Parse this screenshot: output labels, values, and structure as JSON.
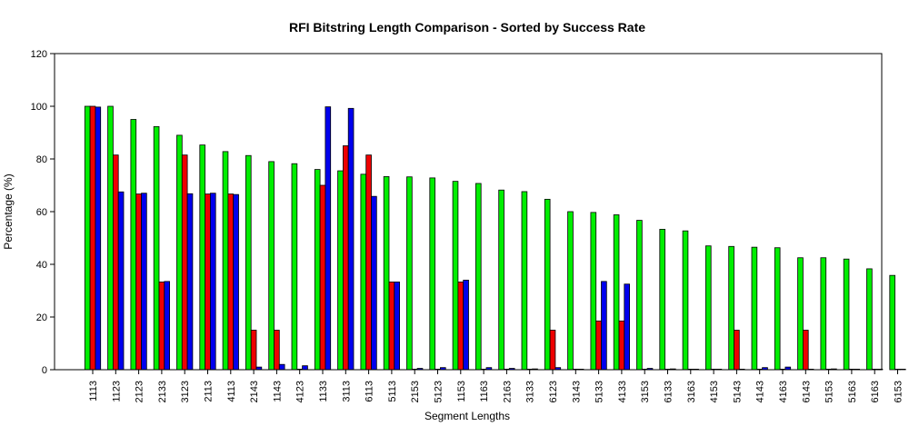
{
  "chart_data": {
    "type": "bar",
    "title": "RFI Bitstring Length Comparison - Sorted by Success Rate",
    "xlabel": "Segment Lengths",
    "ylabel": "Percentage (%)",
    "ylim": [
      0,
      120
    ],
    "yticks": [
      0,
      20,
      40,
      60,
      80,
      100,
      120
    ],
    "grid": false,
    "legend": "none",
    "categories": [
      "1113",
      "1123",
      "2123",
      "2133",
      "3123",
      "2113",
      "4113",
      "2143",
      "1143",
      "4123",
      "1133",
      "3113",
      "6113",
      "5113",
      "2153",
      "5123",
      "1153",
      "1163",
      "2163",
      "3133",
      "6123",
      "3143",
      "5133",
      "4133",
      "3153",
      "6133",
      "3163",
      "4153",
      "5143",
      "4143",
      "4163",
      "6143",
      "5153",
      "5163",
      "6163",
      "6153"
    ],
    "series": [
      {
        "color": "#00ee00",
        "values": [
          100,
          100,
          95,
          92.3,
          89,
          85.3,
          82.8,
          81.3,
          79,
          78.2,
          76,
          75.5,
          74.2,
          73.3,
          73.2,
          72.8,
          71.5,
          70.7,
          68.2,
          67.6,
          64.7,
          60,
          59.7,
          58.8,
          56.7,
          53.3,
          52.7,
          47,
          46.8,
          46.5,
          46.3,
          42.5,
          42.5,
          42,
          38.3,
          35.8
        ]
      },
      {
        "color": "#ee0000",
        "values": [
          100,
          81.5,
          66.7,
          33.3,
          81.5,
          66.7,
          66.7,
          15,
          15,
          0,
          70,
          85,
          81.5,
          33.3,
          0,
          0,
          33.3,
          0,
          0,
          0,
          15,
          0,
          18.5,
          18.5,
          0,
          0,
          0,
          0,
          15,
          0,
          0,
          15,
          0,
          0,
          0,
          0
        ]
      },
      {
        "color": "#0000ee",
        "values": [
          99.7,
          67.5,
          67,
          33.5,
          66.8,
          67,
          66.5,
          1,
          2,
          1.5,
          99.8,
          99.2,
          65.8,
          33.3,
          0.5,
          0.8,
          34,
          0.8,
          0.5,
          0.3,
          0.8,
          0.2,
          33.5,
          32.5,
          0.5,
          0.3,
          0.2,
          0.1,
          0.1,
          0.8,
          1,
          0.1,
          0.3,
          0.1,
          0.1,
          0.2
        ]
      }
    ]
  }
}
